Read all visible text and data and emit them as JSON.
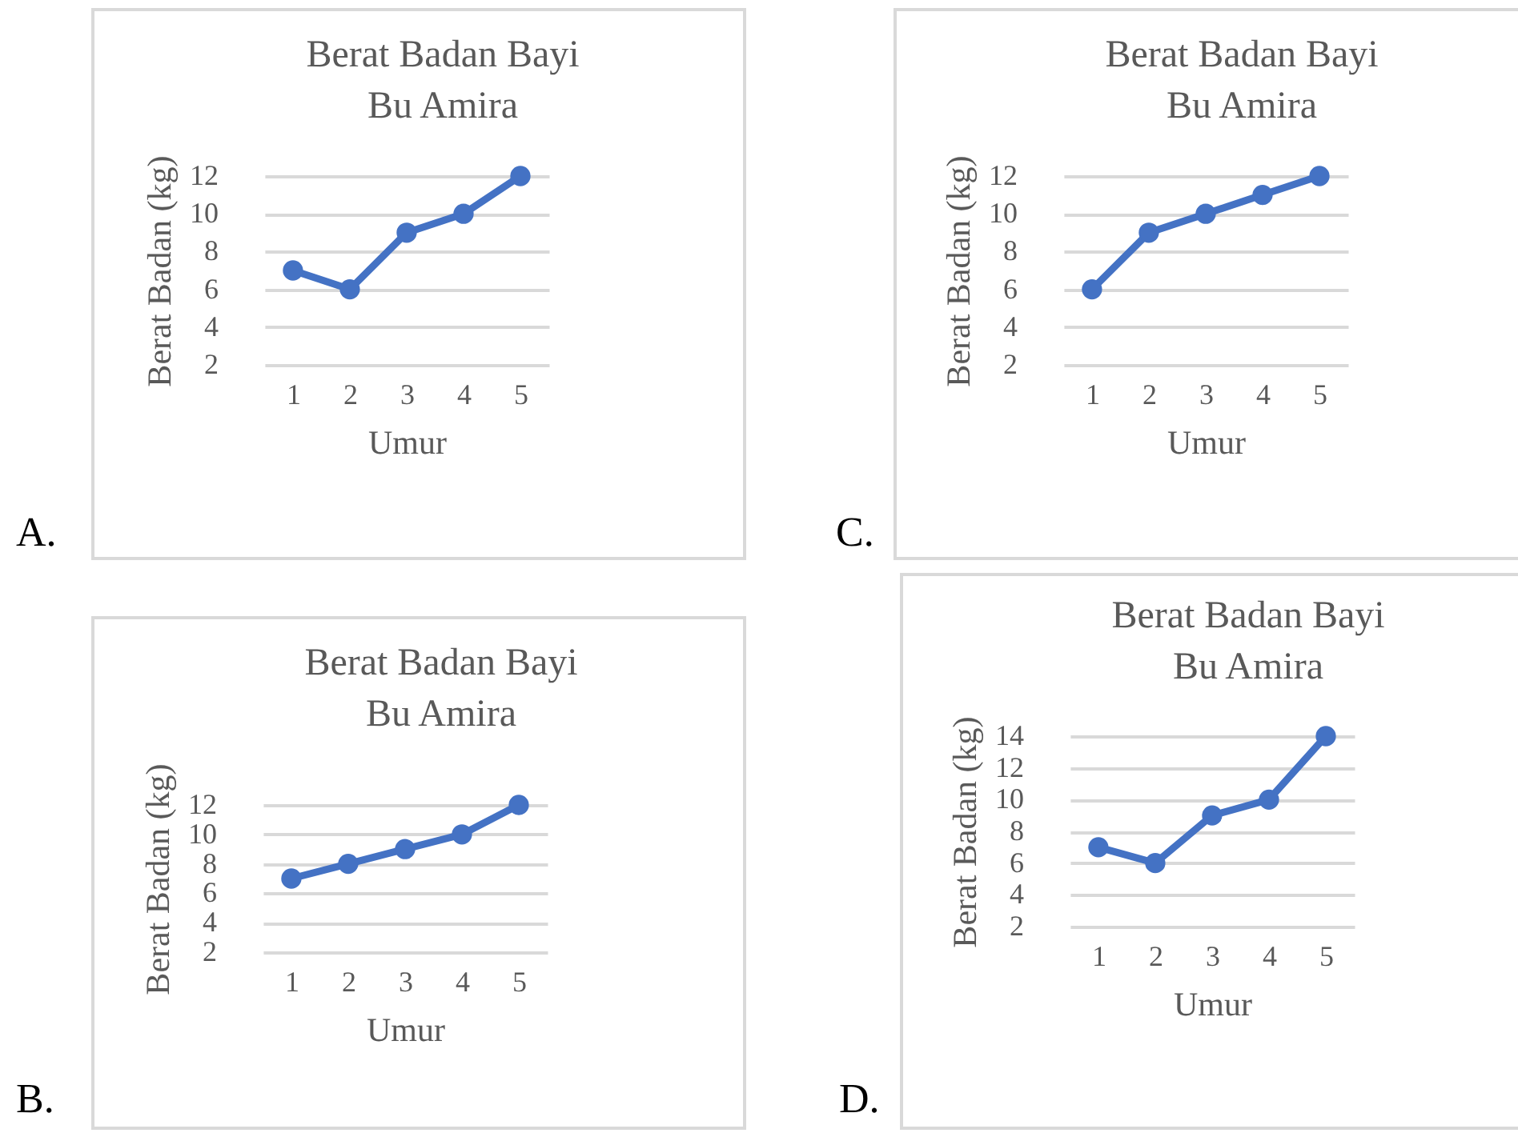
{
  "chart_data": [
    {
      "type": "line",
      "title": "Berat Badan Bayi\nBu Amira",
      "xlabel": "Umur",
      "ylabel": "Berat Badan (kg)",
      "categories": [
        "1",
        "2",
        "3",
        "4",
        "5"
      ],
      "series": [
        {
          "color": "#4472c4",
          "values": [
            7,
            6,
            9,
            10,
            12
          ]
        }
      ],
      "ylim": [
        2,
        12
      ],
      "yticks": [
        2,
        4,
        6,
        8,
        10,
        12
      ],
      "grid": "y",
      "marker": "circle",
      "annotations": [
        "A."
      ]
    },
    {
      "type": "line",
      "title": "Berat Badan Bayi\nBu Amira",
      "xlabel": "Umur",
      "ylabel": "Berat Badan (kg)",
      "categories": [
        "1",
        "2",
        "3",
        "4",
        "5"
      ],
      "series": [
        {
          "color": "#4472c4",
          "values": [
            6,
            9,
            10,
            11,
            12
          ]
        }
      ],
      "ylim": [
        2,
        12
      ],
      "yticks": [
        2,
        4,
        6,
        8,
        10,
        12
      ],
      "grid": "y",
      "marker": "circle",
      "annotations": [
        "C."
      ]
    },
    {
      "type": "line",
      "title": "Berat Badan Bayi\nBu Amira",
      "xlabel": "Umur",
      "ylabel": "Berat Badan (kg)",
      "categories": [
        "1",
        "2",
        "3",
        "4",
        "5"
      ],
      "series": [
        {
          "color": "#4472c4",
          "values": [
            7,
            8,
            9,
            10,
            12
          ]
        }
      ],
      "ylim": [
        2,
        12
      ],
      "yticks": [
        2,
        4,
        6,
        8,
        10,
        12
      ],
      "grid": "y",
      "marker": "circle",
      "annotations": [
        "B."
      ]
    },
    {
      "type": "line",
      "title": "Berat Badan Bayi\nBu Amira",
      "xlabel": "Umur",
      "ylabel": "Berat Badan (kg)",
      "categories": [
        "1",
        "2",
        "3",
        "4",
        "5"
      ],
      "series": [
        {
          "color": "#4472c4",
          "values": [
            7,
            6,
            9,
            10,
            14
          ]
        }
      ],
      "ylim": [
        2,
        14
      ],
      "yticks": [
        2,
        4,
        6,
        8,
        10,
        12,
        14
      ],
      "grid": "y",
      "marker": "circle",
      "annotations": [
        "D."
      ]
    }
  ]
}
